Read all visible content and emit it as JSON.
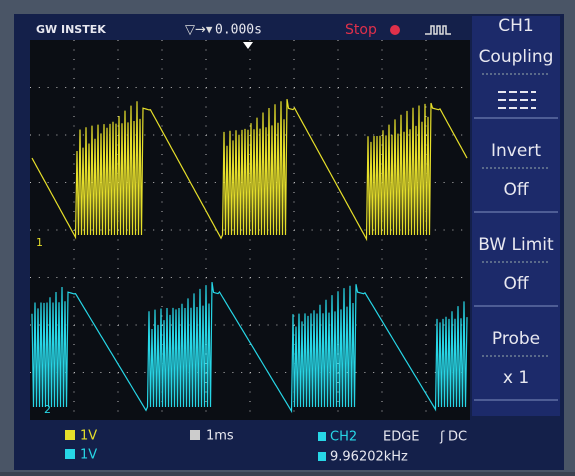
{
  "header": {
    "brand": "GW INSTEK",
    "trigger_position": "0.000s",
    "status": "Stop"
  },
  "menu": {
    "channel": "CH1",
    "items": [
      {
        "label": "Coupling"
      },
      {
        "label": "Invert",
        "value": "Off"
      },
      {
        "label": "BW Limit",
        "value": "Off"
      },
      {
        "label": "Probe",
        "value": "x 1"
      }
    ]
  },
  "footer": {
    "ch1_scale": "1V",
    "ch2_scale": "1V",
    "timebase": "1ms",
    "trigger_source": "CH2",
    "trigger_type": "EDGE",
    "trigger_coupling": "DC",
    "frequency": "9.96202kHz"
  },
  "markers": {
    "ch1": "1",
    "ch2": "2"
  }
}
